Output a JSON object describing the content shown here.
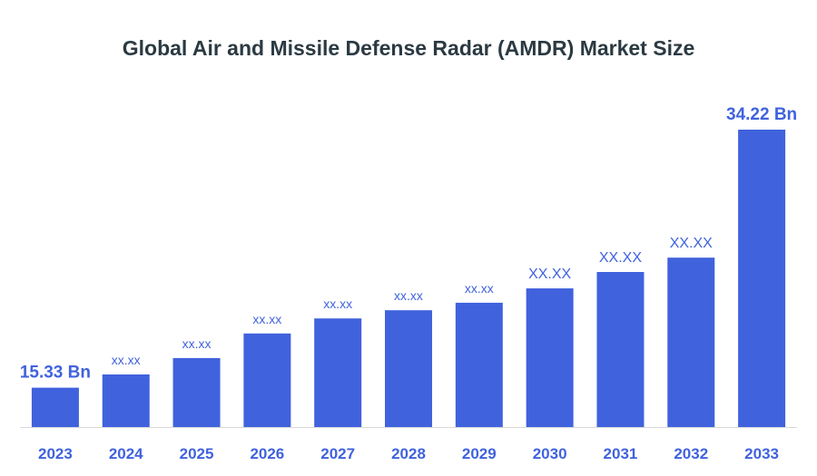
{
  "chart_data": {
    "type": "bar",
    "title": "Global Air and Missile Defense Radar (AMDR) Market Size",
    "xlabel": "",
    "ylabel": "",
    "categories": [
      "2023",
      "2024",
      "2025",
      "2026",
      "2027",
      "2028",
      "2029",
      "2030",
      "2031",
      "2032",
      "2033"
    ],
    "values": [
      15.33,
      16.3,
      17.5,
      19.3,
      20.4,
      21.0,
      21.55,
      22.6,
      23.8,
      24.85,
      34.22
    ],
    "data_labels": [
      "15.33 Bn",
      "xx.xx",
      "xx.xx",
      "xx.xx",
      "xx.xx",
      "xx.xx",
      "xx.xx",
      "XX.XX",
      "XX.XX",
      "XX.XX",
      "34.22 Bn"
    ],
    "label_sizes": [
      "large",
      "small",
      "small",
      "small",
      "small",
      "small",
      "small",
      "medium",
      "medium",
      "medium",
      "large"
    ],
    "ylim": [
      12.45,
      34.22
    ],
    "grid": false,
    "legend": "none",
    "colors": {
      "bar": "#4062dd",
      "label": "#4062dd",
      "axis": "#d9d9d9",
      "title": "#2b3a42",
      "tick": "#4062dd"
    }
  }
}
